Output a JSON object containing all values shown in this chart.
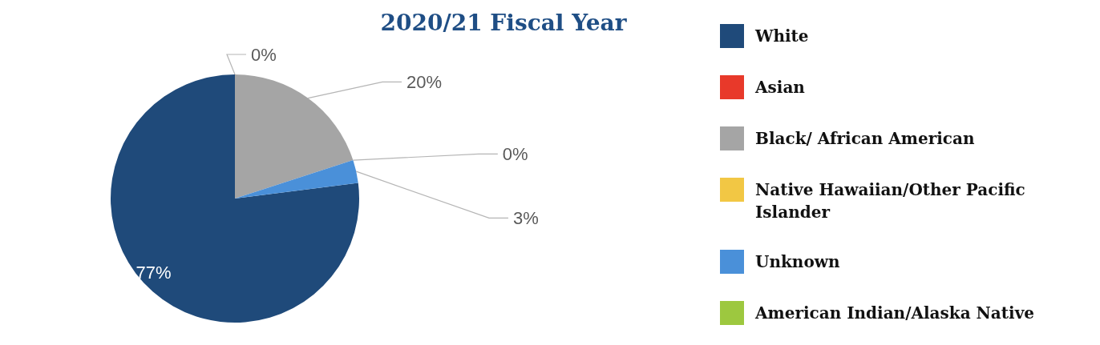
{
  "chart_data": {
    "type": "pie",
    "title": "2020/21 Fiscal Year",
    "categories": [
      "White",
      "Asian",
      "Black/ African American",
      "Native Hawaiian/Other Pacific Islander",
      "Unknown",
      "American Indian/Alaska Native"
    ],
    "values": [
      77,
      0,
      20,
      0,
      3,
      0
    ],
    "value_labels": [
      "77%",
      "0%",
      "20%",
      "0%",
      "3%",
      null
    ],
    "colors": [
      "#1f4a7a",
      "#e8392a",
      "#a5a5a5",
      "#f2c744",
      "#4a90d9",
      "#9dc83f"
    ],
    "legend": "right"
  }
}
